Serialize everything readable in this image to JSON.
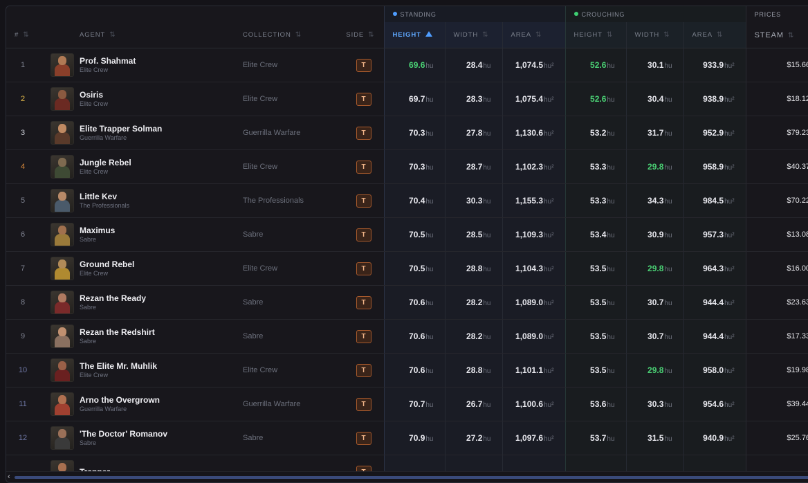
{
  "groups": {
    "standing": "STANDING",
    "crouching": "CROUCHING",
    "prices": "PRICES",
    "standing_color": "#4f9dff",
    "crouching_color": "#3ecf72"
  },
  "columns": {
    "rank": "#",
    "agent": "AGENT",
    "collection": "COLLECTION",
    "side": "SIDE",
    "s_height": "HEIGHT",
    "s_width": "WIDTH",
    "s_area": "AREA",
    "c_height": "HEIGHT",
    "c_width": "WIDTH",
    "c_area": "AREA",
    "steam": "STEAM"
  },
  "units": {
    "hu": "hu",
    "hu2": "hu²"
  },
  "rows": [
    {
      "rank": "1",
      "name": "Prof. Shahmat",
      "faction": "Elite Crew",
      "collection": "Elite Crew",
      "side": "T",
      "s_height": "69.6",
      "s_width": "28.4",
      "s_area": "1,074.5",
      "c_height": "52.6",
      "c_width": "30.1",
      "c_area": "933.9",
      "steam": "$15.66",
      "rank_color": "#7e8290",
      "g_sh": true,
      "g_ch": true,
      "g_cw": false
    },
    {
      "rank": "2",
      "name": "Osiris",
      "faction": "Elite Crew",
      "collection": "Elite Crew",
      "side": "T",
      "s_height": "69.7",
      "s_width": "28.3",
      "s_area": "1,075.4",
      "c_height": "52.6",
      "c_width": "30.4",
      "c_area": "938.9",
      "steam": "$18.12",
      "rank_color": "#e2b94a",
      "g_sh": false,
      "g_ch": true,
      "g_cw": false
    },
    {
      "rank": "3",
      "name": "Elite Trapper Solman",
      "faction": "Guerrilla Warfare",
      "collection": "Guerrilla Warfare",
      "side": "T",
      "s_height": "70.3",
      "s_width": "27.8",
      "s_area": "1,130.6",
      "c_height": "53.2",
      "c_width": "31.7",
      "c_area": "952.9",
      "steam": "$79.23",
      "rank_color": "#c9ccd4",
      "g_sh": false,
      "g_ch": false,
      "g_cw": false
    },
    {
      "rank": "4",
      "name": "Jungle Rebel",
      "faction": "Elite Crew",
      "collection": "Elite Crew",
      "side": "T",
      "s_height": "70.3",
      "s_width": "28.7",
      "s_area": "1,102.3",
      "c_height": "53.3",
      "c_width": "29.8",
      "c_area": "958.9",
      "steam": "$40.37",
      "rank_color": "#d98a3a",
      "g_sh": false,
      "g_ch": false,
      "g_cw": true
    },
    {
      "rank": "5",
      "name": "Little Kev",
      "faction": "The Professionals",
      "collection": "The Professionals",
      "side": "T",
      "s_height": "70.4",
      "s_width": "30.3",
      "s_area": "1,155.3",
      "c_height": "53.3",
      "c_width": "34.3",
      "c_area": "984.5",
      "steam": "$70.22",
      "rank_color": "#7e8290",
      "g_sh": false,
      "g_ch": false,
      "g_cw": false
    },
    {
      "rank": "6",
      "name": "Maximus",
      "faction": "Sabre",
      "collection": "Sabre",
      "side": "T",
      "s_height": "70.5",
      "s_width": "28.5",
      "s_area": "1,109.3",
      "c_height": "53.4",
      "c_width": "30.9",
      "c_area": "957.3",
      "steam": "$13.08",
      "rank_color": "#7e8290",
      "g_sh": false,
      "g_ch": false,
      "g_cw": false
    },
    {
      "rank": "7",
      "name": "Ground Rebel",
      "faction": "Elite Crew",
      "collection": "Elite Crew",
      "side": "T",
      "s_height": "70.5",
      "s_width": "28.8",
      "s_area": "1,104.3",
      "c_height": "53.5",
      "c_width": "29.8",
      "c_area": "964.3",
      "steam": "$16.00",
      "rank_color": "#7e8290",
      "g_sh": false,
      "g_ch": false,
      "g_cw": true
    },
    {
      "rank": "8",
      "name": "Rezan the Ready",
      "faction": "Sabre",
      "collection": "Sabre",
      "side": "T",
      "s_height": "70.6",
      "s_width": "28.2",
      "s_area": "1,089.0",
      "c_height": "53.5",
      "c_width": "30.7",
      "c_area": "944.4",
      "steam": "$23.63",
      "rank_color": "#7e8290",
      "g_sh": false,
      "g_ch": false,
      "g_cw": false
    },
    {
      "rank": "9",
      "name": "Rezan the Redshirt",
      "faction": "Sabre",
      "collection": "Sabre",
      "side": "T",
      "s_height": "70.6",
      "s_width": "28.2",
      "s_area": "1,089.0",
      "c_height": "53.5",
      "c_width": "30.7",
      "c_area": "944.4",
      "steam": "$17.33",
      "rank_color": "#7e8290",
      "g_sh": false,
      "g_ch": false,
      "g_cw": false
    },
    {
      "rank": "10",
      "name": "The Elite Mr. Muhlik",
      "faction": "Elite Crew",
      "collection": "Elite Crew",
      "side": "T",
      "s_height": "70.6",
      "s_width": "28.8",
      "s_area": "1,101.1",
      "c_height": "53.5",
      "c_width": "29.8",
      "c_area": "958.0",
      "steam": "$19.98",
      "rank_color": "#6f78a6",
      "g_sh": false,
      "g_ch": false,
      "g_cw": true
    },
    {
      "rank": "11",
      "name": "Arno the Overgrown",
      "faction": "Guerrilla Warfare",
      "collection": "Guerrilla Warfare",
      "side": "T",
      "s_height": "70.7",
      "s_width": "26.7",
      "s_area": "1,100.6",
      "c_height": "53.6",
      "c_width": "30.3",
      "c_area": "954.6",
      "steam": "$39.44",
      "rank_color": "#6f78a6",
      "g_sh": false,
      "g_ch": false,
      "g_cw": false
    },
    {
      "rank": "12",
      "name": "'The Doctor' Romanov",
      "faction": "Sabre",
      "collection": "Sabre",
      "side": "T",
      "s_height": "70.9",
      "s_width": "27.2",
      "s_area": "1,097.6",
      "c_height": "53.7",
      "c_width": "31.5",
      "c_area": "940.9",
      "steam": "$25.76",
      "rank_color": "#6f78a6",
      "g_sh": false,
      "g_ch": false,
      "g_cw": false
    },
    {
      "rank": "",
      "name": "Trapper",
      "faction": "",
      "collection": "",
      "side": "T",
      "s_height": "",
      "s_width": "",
      "s_area": "",
      "c_height": "",
      "c_width": "",
      "c_area": "",
      "steam": "",
      "rank_color": "#7e8290",
      "g_sh": false,
      "g_ch": false,
      "g_cw": false
    }
  ],
  "scroll_left_icon": "‹"
}
